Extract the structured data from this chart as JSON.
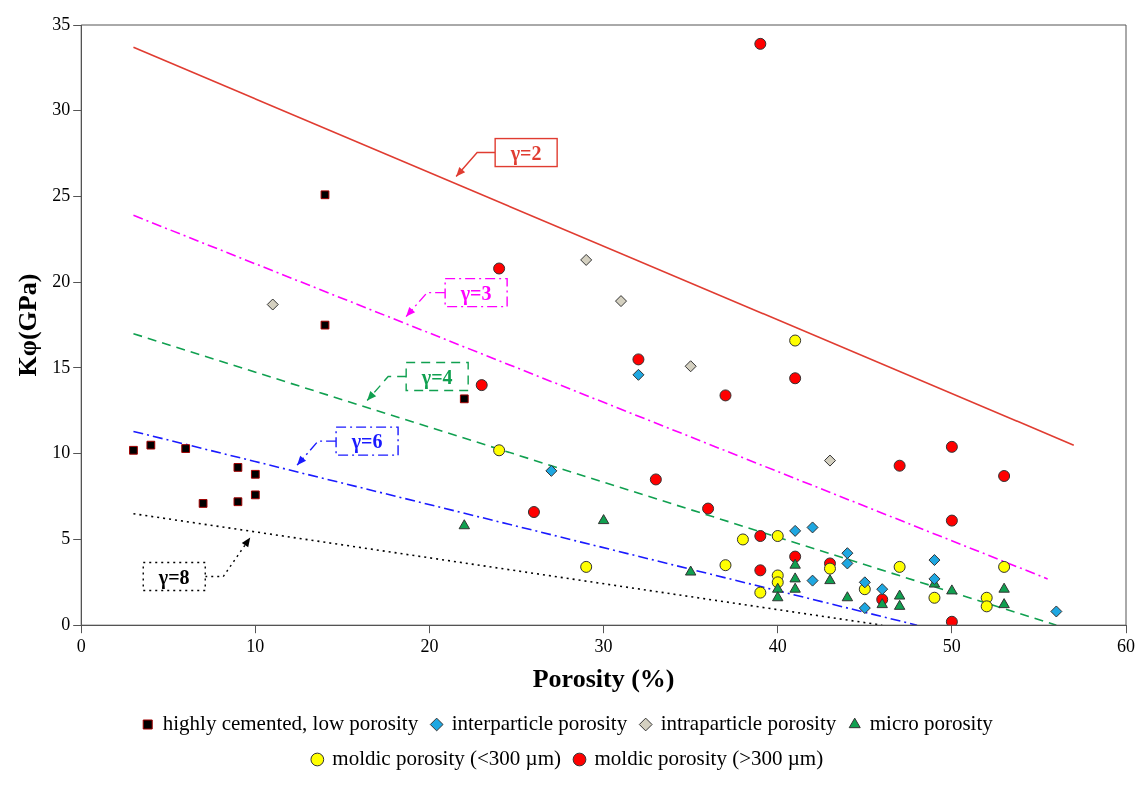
{
  "chart_data": {
    "type": "scatter",
    "xlabel": "Porosity (%)",
    "ylabel": "Kφ(GPa)",
    "xlim": [
      0,
      60
    ],
    "ylim": [
      0,
      35
    ],
    "xticks": [
      0,
      10,
      20,
      30,
      40,
      50,
      60
    ],
    "yticks": [
      0,
      5,
      10,
      15,
      20,
      25,
      30,
      35
    ],
    "grid": false,
    "legend": "bottom",
    "series": [
      {
        "name": "highly cemented, low porosity",
        "color": "#000000",
        "marker": "square",
        "x": [
          3,
          4,
          6,
          7,
          9,
          9,
          10,
          10,
          14,
          14,
          22
        ],
        "values": [
          10.2,
          10.5,
          10.3,
          7.1,
          9.2,
          7.2,
          8.8,
          7.6,
          25.1,
          17.5,
          13.2
        ]
      },
      {
        "name": "interparticle porosity",
        "color": "#1ea7e1",
        "marker": "diamond",
        "x": [
          27,
          32,
          41,
          42,
          42,
          44,
          44,
          45,
          45,
          46,
          49,
          49,
          56
        ],
        "values": [
          9.0,
          14.6,
          5.5,
          5.7,
          2.6,
          4.2,
          3.6,
          2.5,
          1.0,
          2.1,
          3.8,
          2.7,
          0.8
        ]
      },
      {
        "name": "intraparticle porosity",
        "color": "#d4d0c0",
        "marker": "diamond",
        "x": [
          11,
          29,
          31,
          35,
          43
        ],
        "values": [
          18.7,
          21.3,
          18.9,
          15.1,
          9.6
        ]
      },
      {
        "name": "micro porosity",
        "color": "#10a050",
        "marker": "triangle",
        "x": [
          22,
          30,
          35,
          40,
          40,
          41,
          41,
          41,
          43,
          44,
          46,
          47,
          47,
          49,
          50,
          53,
          53
        ],
        "values": [
          5.8,
          6.1,
          3.1,
          2.1,
          1.6,
          3.5,
          2.7,
          2.1,
          2.6,
          1.6,
          1.2,
          1.7,
          1.1,
          2.4,
          2.0,
          2.1,
          1.2
        ]
      },
      {
        "name": "moldic porosity (<300 µm)",
        "color": "#ffff00",
        "marker": "circle",
        "x": [
          24,
          29,
          37,
          38,
          39,
          40,
          40,
          40,
          41,
          43,
          45,
          47,
          49,
          52,
          52,
          53
        ],
        "values": [
          10.2,
          3.4,
          3.5,
          5.0,
          1.9,
          5.2,
          2.9,
          2.5,
          16.6,
          3.3,
          2.1,
          3.4,
          1.6,
          1.6,
          1.1,
          3.4
        ]
      },
      {
        "name": "moldic porosity (>300 µm)",
        "color": "#ff0000",
        "marker": "circle",
        "x": [
          39,
          24,
          23,
          32,
          33,
          37,
          41,
          26,
          36,
          39,
          39,
          41,
          43,
          46,
          47,
          50,
          50,
          50,
          53
        ],
        "values": [
          33.9,
          20.8,
          14.0,
          15.5,
          8.5,
          13.4,
          14.4,
          6.6,
          6.8,
          5.2,
          3.2,
          4.0,
          3.6,
          1.5,
          9.3,
          10.4,
          6.1,
          0.2,
          8.7
        ]
      },
      {
        "name": "γ=2",
        "type": "line",
        "color": "#e03c31",
        "marker": "none",
        "line_style": "solid",
        "x": [
          3,
          57
        ],
        "values": [
          33.7,
          10.5
        ]
      },
      {
        "name": "γ=3",
        "type": "line",
        "color": "#ff00ff",
        "marker": "none",
        "line_style": "dashdot",
        "x": [
          3,
          55.5
        ],
        "values": [
          23.9,
          2.7
        ]
      },
      {
        "name": "γ=4",
        "type": "line",
        "color": "#10a050",
        "marker": "none",
        "line_style": "dashed",
        "x": [
          3,
          56
        ],
        "values": [
          17.0,
          0
        ]
      },
      {
        "name": "γ=6",
        "type": "line",
        "color": "#1a1aff",
        "marker": "none",
        "line_style": "dashdot",
        "x": [
          3,
          48
        ],
        "values": [
          11.3,
          0
        ]
      },
      {
        "name": "γ=8",
        "type": "line",
        "color": "#000000",
        "marker": "none",
        "line_style": "dotted",
        "x": [
          3,
          46
        ],
        "values": [
          6.5,
          0
        ]
      }
    ]
  }
}
